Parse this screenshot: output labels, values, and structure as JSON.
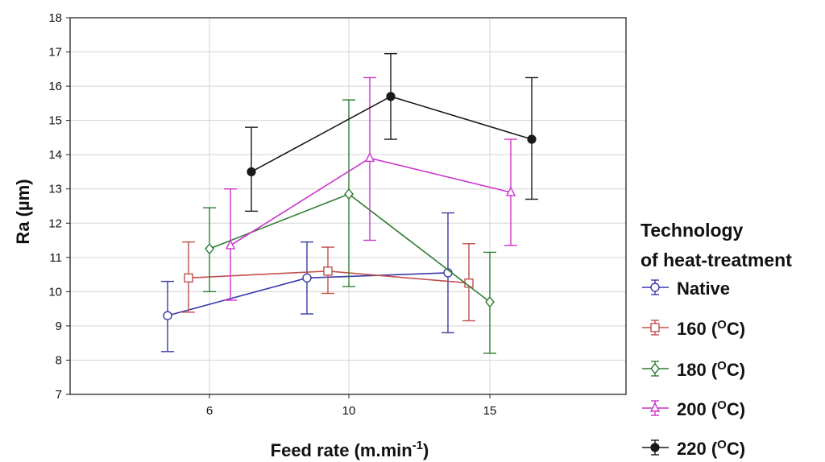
{
  "chart_data": {
    "type": "line",
    "xlabel": "Feed rate (m.min",
    "xlabel_sup": "-1",
    "xlabel_end": ")",
    "ylabel": "Ra (µm)",
    "categories": [
      "6",
      "10",
      "15"
    ],
    "ylim": [
      7,
      18
    ],
    "yticks": [
      "7",
      "8",
      "9",
      "10",
      "11",
      "12",
      "13",
      "14",
      "15",
      "16",
      "17",
      "18"
    ],
    "grid": true,
    "error_bars": true,
    "legend_placement": "right",
    "legend_title_lines": [
      "Technology",
      "of heat-treatment"
    ],
    "series": [
      {
        "name": "Native",
        "color": "#3a3aa8",
        "marker": "circle-open",
        "values": [
          9.3,
          10.4,
          10.55
        ],
        "lower": [
          8.25,
          9.35,
          8.8
        ],
        "upper": [
          10.3,
          11.45,
          12.3
        ]
      },
      {
        "name": "160",
        "unit_sup": "O",
        "unit_end": "C",
        "color": "#c0504d",
        "marker": "square-open",
        "values": [
          10.4,
          10.6,
          10.25
        ],
        "lower": [
          9.4,
          9.95,
          9.15
        ],
        "upper": [
          11.45,
          11.3,
          11.4
        ]
      },
      {
        "name": "180",
        "unit_sup": "O",
        "unit_end": "C",
        "color": "#2e7d32",
        "marker": "diamond-open",
        "values": [
          11.25,
          12.85,
          9.7
        ],
        "lower": [
          10.0,
          10.15,
          8.2
        ],
        "upper": [
          12.45,
          15.6,
          11.15
        ]
      },
      {
        "name": "200",
        "unit_sup": "O",
        "unit_end": "C",
        "color": "#cc33cc",
        "marker": "triangle-open",
        "values": [
          11.35,
          13.9,
          12.9
        ],
        "lower": [
          9.75,
          11.5,
          11.35
        ],
        "upper": [
          13.0,
          16.25,
          14.45
        ]
      },
      {
        "name": "220",
        "unit_sup": "O",
        "unit_end": "C",
        "color": "#1a1a1a",
        "marker": "circle-filled",
        "values": [
          13.5,
          15.7,
          14.45
        ],
        "lower": [
          12.35,
          14.45,
          12.7
        ],
        "upper": [
          14.8,
          16.95,
          16.25
        ]
      }
    ]
  }
}
